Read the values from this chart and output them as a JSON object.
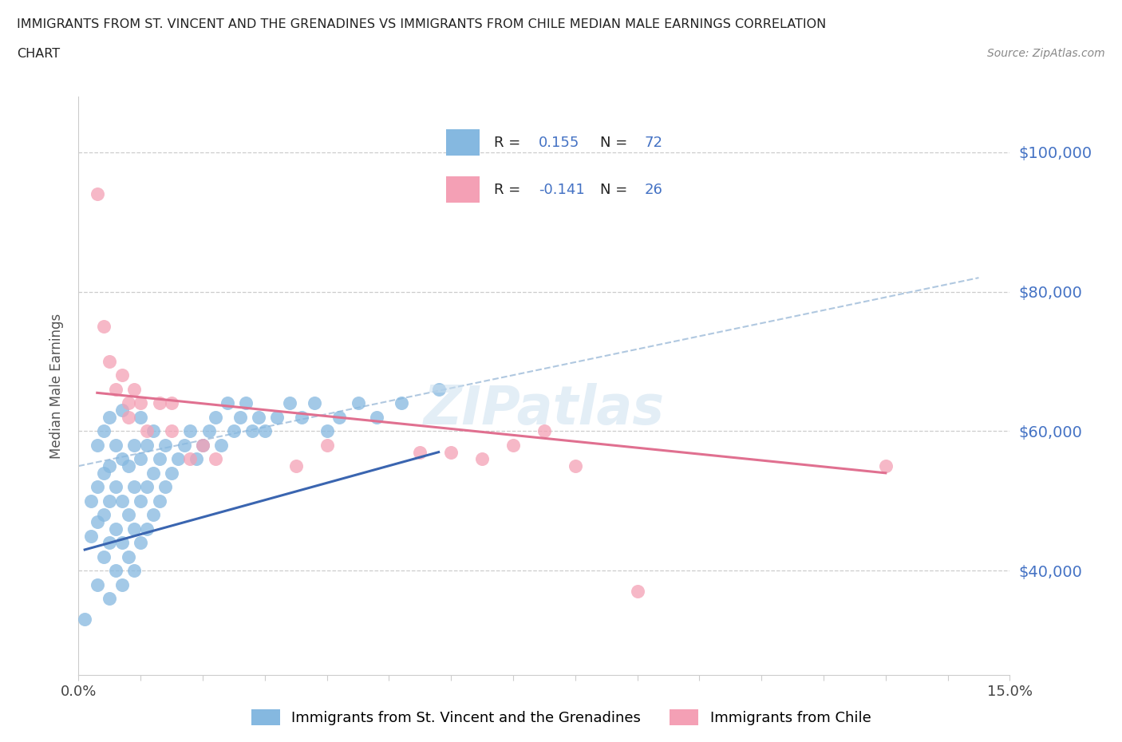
{
  "title_line1": "IMMIGRANTS FROM ST. VINCENT AND THE GRENADINES VS IMMIGRANTS FROM CHILE MEDIAN MALE EARNINGS CORRELATION",
  "title_line2": "CHART",
  "source": "Source: ZipAtlas.com",
  "ylabel": "Median Male Earnings",
  "xlim": [
    0.0,
    0.15
  ],
  "ylim": [
    25000,
    108000
  ],
  "ytick_labels": [
    "$40,000",
    "$60,000",
    "$80,000",
    "$100,000"
  ],
  "ytick_values": [
    40000,
    60000,
    80000,
    100000
  ],
  "color_blue": "#85b8e0",
  "color_pink": "#f4a0b5",
  "color_blue_line": "#3a65b0",
  "color_pink_line": "#e07090",
  "color_dashed": "#b0c8e0",
  "legend_R1": "0.155",
  "legend_N1": "72",
  "legend_R2": "-0.141",
  "legend_N2": "26",
  "watermark": "ZIPatlas",
  "blue_scatter_x": [
    0.001,
    0.002,
    0.002,
    0.003,
    0.003,
    0.003,
    0.003,
    0.004,
    0.004,
    0.004,
    0.004,
    0.005,
    0.005,
    0.005,
    0.005,
    0.005,
    0.006,
    0.006,
    0.006,
    0.006,
    0.007,
    0.007,
    0.007,
    0.007,
    0.007,
    0.008,
    0.008,
    0.008,
    0.009,
    0.009,
    0.009,
    0.009,
    0.01,
    0.01,
    0.01,
    0.01,
    0.011,
    0.011,
    0.011,
    0.012,
    0.012,
    0.012,
    0.013,
    0.013,
    0.014,
    0.014,
    0.015,
    0.016,
    0.017,
    0.018,
    0.019,
    0.02,
    0.021,
    0.022,
    0.023,
    0.024,
    0.025,
    0.026,
    0.027,
    0.028,
    0.029,
    0.03,
    0.032,
    0.034,
    0.036,
    0.038,
    0.04,
    0.042,
    0.045,
    0.048,
    0.052,
    0.058
  ],
  "blue_scatter_y": [
    33000,
    45000,
    50000,
    38000,
    47000,
    52000,
    58000,
    42000,
    48000,
    54000,
    60000,
    36000,
    44000,
    50000,
    55000,
    62000,
    40000,
    46000,
    52000,
    58000,
    38000,
    44000,
    50000,
    56000,
    63000,
    42000,
    48000,
    55000,
    40000,
    46000,
    52000,
    58000,
    44000,
    50000,
    56000,
    62000,
    46000,
    52000,
    58000,
    48000,
    54000,
    60000,
    50000,
    56000,
    52000,
    58000,
    54000,
    56000,
    58000,
    60000,
    56000,
    58000,
    60000,
    62000,
    58000,
    64000,
    60000,
    62000,
    64000,
    60000,
    62000,
    60000,
    62000,
    64000,
    62000,
    64000,
    60000,
    62000,
    64000,
    62000,
    64000,
    66000
  ],
  "pink_scatter_x": [
    0.003,
    0.004,
    0.005,
    0.006,
    0.007,
    0.008,
    0.008,
    0.009,
    0.01,
    0.011,
    0.013,
    0.015,
    0.015,
    0.018,
    0.02,
    0.022,
    0.035,
    0.04,
    0.055,
    0.06,
    0.065,
    0.07,
    0.075,
    0.08,
    0.09,
    0.13
  ],
  "pink_scatter_y": [
    94000,
    75000,
    70000,
    66000,
    68000,
    64000,
    62000,
    66000,
    64000,
    60000,
    64000,
    64000,
    60000,
    56000,
    58000,
    56000,
    55000,
    58000,
    57000,
    57000,
    56000,
    58000,
    60000,
    55000,
    37000,
    55000
  ],
  "blue_line_x": [
    0.001,
    0.058
  ],
  "blue_line_y": [
    43000,
    57000
  ],
  "pink_line_x": [
    0.003,
    0.13
  ],
  "pink_line_y": [
    65500,
    54000
  ],
  "dashed_line_x": [
    0.0,
    0.145
  ],
  "dashed_line_y": [
    55000,
    82000
  ]
}
